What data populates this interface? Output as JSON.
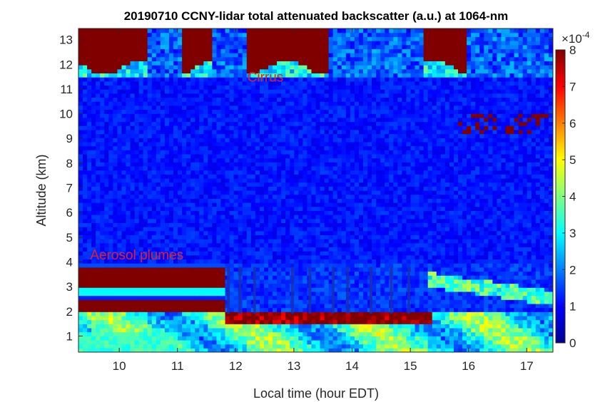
{
  "chart_data": {
    "type": "heatmap",
    "title": "20190710 CCNY-lidar total attenuated backscatter (a.u.) at 1064-nm",
    "xlabel": "Local time (hour EDT)",
    "ylabel": "Altitude (km)",
    "xlim": [
      9.3,
      17.45
    ],
    "ylim": [
      0.35,
      13.45
    ],
    "xticks": [
      10,
      11,
      12,
      13,
      14,
      15,
      16,
      17
    ],
    "yticks": [
      1,
      2,
      3,
      4,
      5,
      6,
      7,
      8,
      9,
      10,
      11,
      12,
      13
    ],
    "colorbar": {
      "colormap": "jet",
      "range": [
        0,
        8
      ],
      "ticks": [
        0,
        1,
        2,
        3,
        4,
        5,
        6,
        7,
        8
      ],
      "exponent_label": "×10",
      "exponent": "-4"
    },
    "layers": [
      {
        "name": "boundary-layer aerosol",
        "x": [
          9.3,
          17.45
        ],
        "altitude_km": [
          0.35,
          2.0
        ],
        "level": 3.5
      },
      {
        "name": "elevated aerosol layer",
        "x": [
          9.3,
          11.8
        ],
        "altitude_km": [
          2.9,
          3.8
        ],
        "level": 8
      },
      {
        "name": "lower aerosol band",
        "x": [
          9.3,
          11.5
        ],
        "altitude_km": [
          1.8,
          2.4
        ],
        "level": 8
      },
      {
        "name": "cirrus",
        "x": [
          9.3,
          16.3
        ],
        "altitude_km": [
          11.5,
          13.4
        ],
        "level": 8
      },
      {
        "name": "free troposphere background",
        "x": [
          9.3,
          17.45
        ],
        "altitude_km": [
          4.0,
          11.5
        ],
        "level": 0.9
      }
    ],
    "annotations": [
      {
        "text": "Cirrus",
        "x": 12.2,
        "y": 11.3
      },
      {
        "text": "Aerosol plumes",
        "x": 9.5,
        "y": 4.1
      }
    ]
  }
}
